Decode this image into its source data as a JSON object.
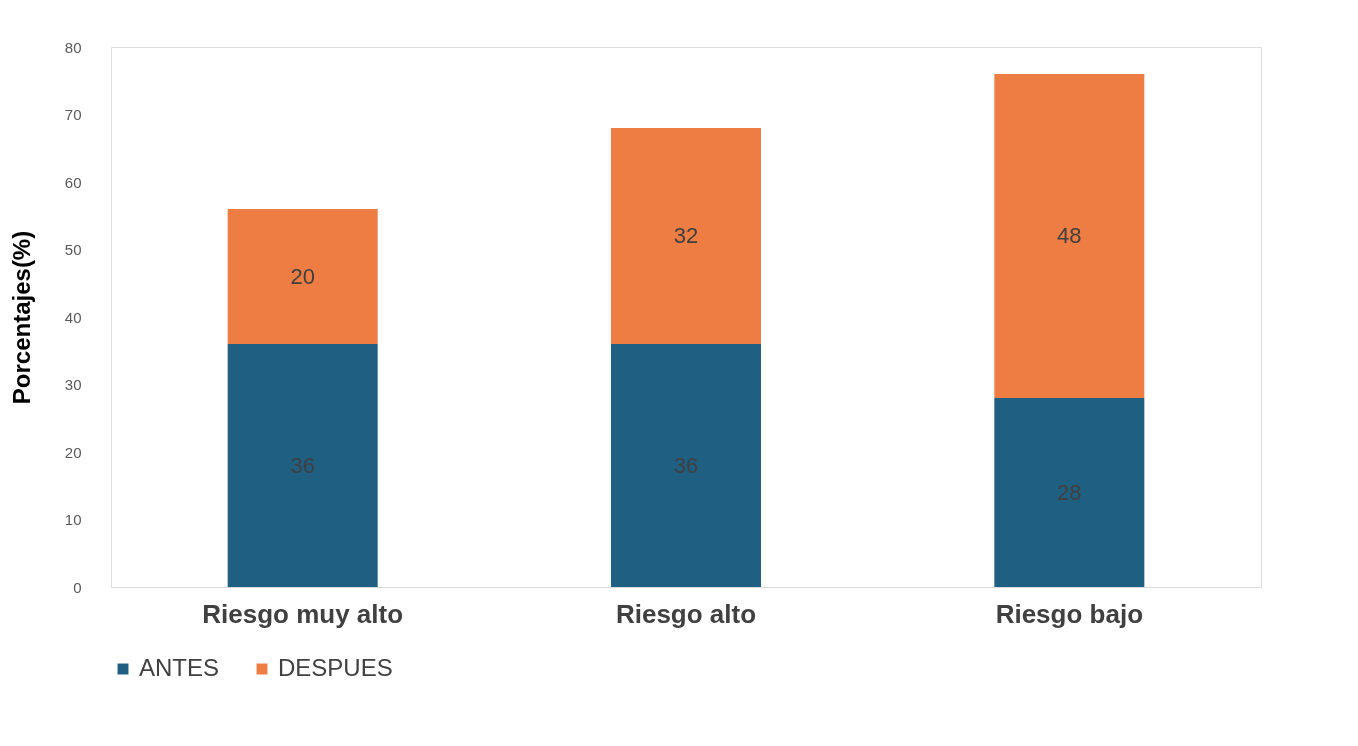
{
  "chart_data": {
    "type": "bar",
    "stacked": true,
    "ylabel": "Porcentajes(%)",
    "categories": [
      "Riesgo muy alto",
      "Riesgo alto",
      "Riesgo bajo"
    ],
    "series": [
      {
        "name": "ANTES",
        "color": "#1f5f82",
        "values": [
          36,
          36,
          28
        ]
      },
      {
        "name": "DESPUES",
        "color": "#ee7d44",
        "values": [
          20,
          32,
          48
        ]
      }
    ],
    "ylim": [
      0,
      80
    ],
    "yticks": [
      0,
      10,
      20,
      30,
      40,
      50,
      60,
      70,
      80
    ],
    "grid": false,
    "legend": "bottom",
    "data_labels": true
  }
}
